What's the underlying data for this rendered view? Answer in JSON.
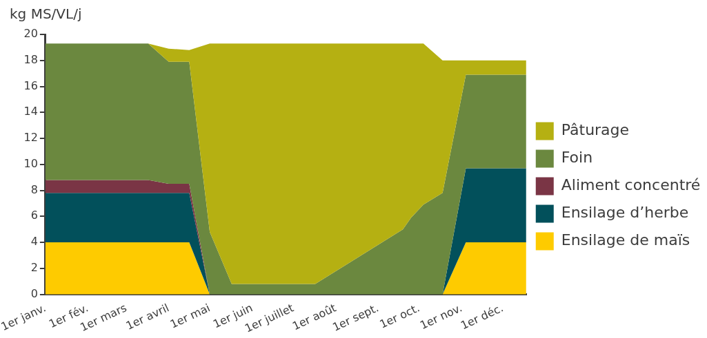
{
  "chart_data": {
    "type": "area",
    "ylabel": "kg MS/VL/j",
    "stacked": true,
    "legend": "right",
    "x": [
      "--01-01",
      "--03-17",
      "--04-01",
      "--04-16",
      "--05-01",
      "--05-17",
      "--07-17",
      "--09-19",
      "--09-25",
      "--10-04",
      "--10-18",
      "--11-04",
      "--12-18"
    ],
    "xlim": [
      "--01-01",
      "--12-18"
    ],
    "xticks": [
      {
        "value": "--01-01",
        "label": "1er janv."
      },
      {
        "value": "--02-01",
        "label": "1er fév."
      },
      {
        "value": "--03-01",
        "label": "1er mars"
      },
      {
        "value": "--04-01",
        "label": "1er avril"
      },
      {
        "value": "--05-01",
        "label": "1er mai"
      },
      {
        "value": "--06-01",
        "label": "1er juin"
      },
      {
        "value": "--07-01",
        "label": "1er juillet"
      },
      {
        "value": "--08-01",
        "label": "1er août"
      },
      {
        "value": "--09-01",
        "label": "1er sept."
      },
      {
        "value": "--10-01",
        "label": "1er oct."
      },
      {
        "value": "--11-01",
        "label": "1er nov."
      },
      {
        "value": "--12-01",
        "label": "1er déc."
      }
    ],
    "ylim": [
      0,
      20
    ],
    "yticks": [
      0,
      2,
      4,
      6,
      8,
      10,
      12,
      14,
      16,
      18,
      20
    ],
    "series": [
      {
        "name": "Ensilage de maïs",
        "color": "#fecb00",
        "values": [
          4,
          4,
          4,
          4,
          0,
          0,
          0,
          0,
          0,
          0,
          0,
          4,
          4
        ]
      },
      {
        "name": "Ensilage d’herbe",
        "color": "#02505b",
        "values": [
          3.8,
          3.8,
          3.8,
          3.8,
          0,
          0,
          0,
          0,
          0,
          0,
          0,
          5.7,
          5.7
        ]
      },
      {
        "name": "Aliment concentré",
        "color": "#7a3545",
        "values": [
          1.0,
          1.0,
          0.7,
          0.7,
          0,
          null,
          null,
          null,
          null,
          null,
          null,
          null,
          null
        ]
      },
      {
        "name": "Foin",
        "color": "#6b883f",
        "values": [
          10.5,
          10.5,
          9.4,
          9.4,
          4.8,
          0.8,
          0.8,
          5.0,
          5.9,
          6.9,
          7.8,
          7.2,
          7.2
        ]
      },
      {
        "name": "Pâturage",
        "color": "#b5b012",
        "values": [
          0,
          0,
          1.0,
          0.9,
          14.5,
          18.5,
          18.5,
          14.3,
          13.4,
          12.4,
          10.2,
          1.1,
          1.1
        ]
      }
    ]
  }
}
